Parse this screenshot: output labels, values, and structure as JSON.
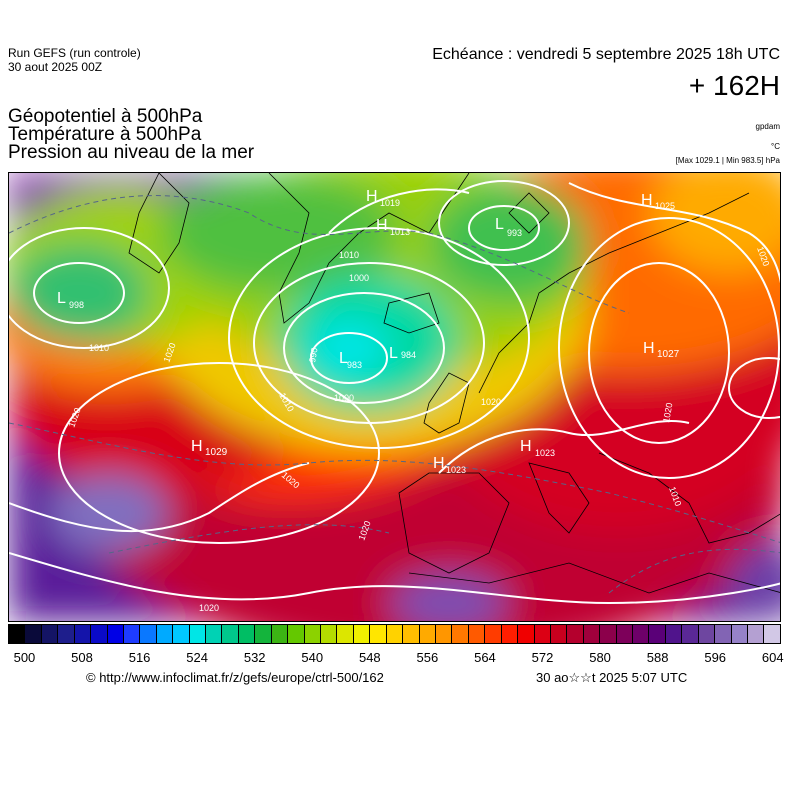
{
  "header": {
    "run_line1": "Run GEFS (run controle)",
    "run_line2": "30 aout 2025 00Z",
    "echeance": "Echéance : vendredi 5 septembre 2025 18h UTC",
    "lead_time": "+ 162H",
    "field1": "Géopotentiel à 500hPa",
    "field2": "Température à 500hPa",
    "field3": "Pression au niveau de la mer",
    "unit1": "gpdam",
    "unit2": "°C",
    "minmax": "[Max 1029.1 | Min 983.5] hPa"
  },
  "pressure_centers": [
    {
      "type": "H",
      "value": "1019"
    },
    {
      "type": "H",
      "value": "1013"
    },
    {
      "type": "L",
      "value": "993"
    },
    {
      "type": "L",
      "value": "998"
    },
    {
      "type": "L",
      "value": "983"
    },
    {
      "type": "L",
      "value": "984"
    },
    {
      "type": "H",
      "value": "1027"
    },
    {
      "type": "H",
      "value": "1029"
    },
    {
      "type": "H",
      "value": "1023"
    },
    {
      "type": "H",
      "value": "1023"
    },
    {
      "type": "H",
      "value": "1025"
    }
  ],
  "isobar_labels": [
    "1010",
    "1010",
    "1000",
    "990",
    "1000",
    "1010",
    "1020",
    "1020",
    "1020",
    "1020",
    "1020",
    "1020",
    "1010",
    "1020",
    "1020"
  ],
  "colorbar": {
    "ticks": [
      "500",
      "508",
      "516",
      "524",
      "532",
      "540",
      "548",
      "556",
      "564",
      "572",
      "580",
      "588",
      "596",
      "604"
    ],
    "colors": [
      "#000000",
      "#0a0a3a",
      "#141465",
      "#1e1e8c",
      "#1414aa",
      "#0a0ac8",
      "#0000e6",
      "#1e3cff",
      "#0a78ff",
      "#00aaff",
      "#00c8ff",
      "#00e6e6",
      "#00d2b4",
      "#00c88c",
      "#00be64",
      "#14b43c",
      "#3cb414",
      "#64c800",
      "#8cd200",
      "#b4dc00",
      "#dce600",
      "#f0f000",
      "#ffe600",
      "#ffd200",
      "#ffbe00",
      "#ffaa00",
      "#ff9600",
      "#ff7800",
      "#ff5a00",
      "#ff3c00",
      "#ff1e00",
      "#f00000",
      "#dc0014",
      "#c8001e",
      "#b4002d",
      "#a0003c",
      "#8c004b",
      "#7d005a",
      "#6e0069",
      "#5a0078",
      "#50148c",
      "#5a2896",
      "#6e46a0",
      "#8264b4",
      "#9682c8",
      "#b4a0d2",
      "#d2c8e6"
    ]
  },
  "credit": "© http://www.infoclimat.fr/z/gefs/europe/ctrl-500/162",
  "generated": "30 ao☆☆t 2025  5:07 UTC"
}
